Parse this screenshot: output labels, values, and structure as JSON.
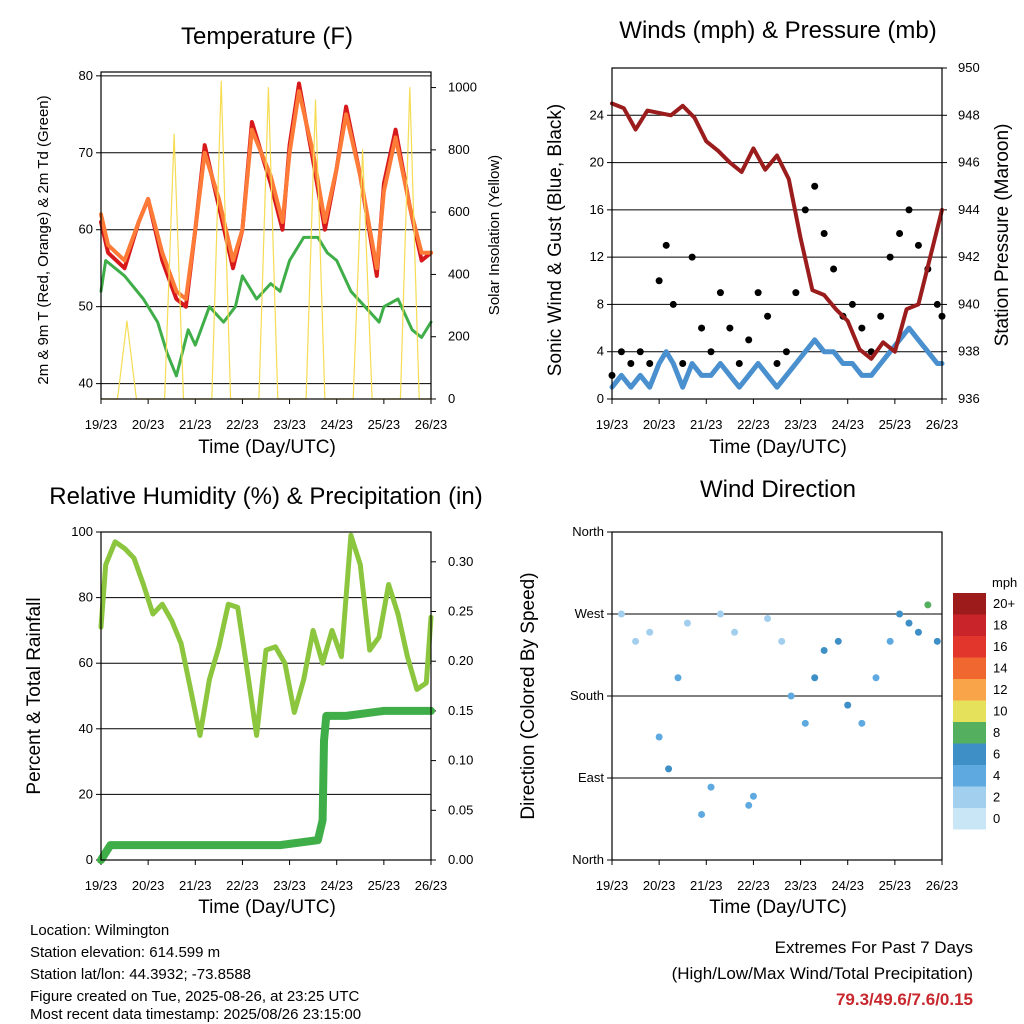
{
  "x_ticks": [
    "19/23",
    "20/23",
    "21/23",
    "22/23",
    "23/23",
    "24/23",
    "25/23",
    "26/23"
  ],
  "xlabel": "Time (Day/UTC)",
  "colors": {
    "temp_2m": "#d7191c",
    "temp_9m": "#fd7a37",
    "dewpoint": "#3fae49",
    "solar": "#f5dc52",
    "gust": "#000000",
    "wind": "#4a90cf",
    "pressure": "#9b1c1c",
    "rh": "#8cc63f",
    "precip": "#3fae49"
  },
  "chart_data": [
    {
      "id": "temperature",
      "type": "line",
      "title": "Temperature (F)",
      "xlabel": "Time (Day/UTC)",
      "ylabel": "2m & 9m T (Red, Orange) & 2m Td (Green)",
      "y2label": "Solar Insolation (Yellow)",
      "ylim": [
        38,
        80.5
      ],
      "y_ticks": [
        40,
        50,
        60,
        70,
        80
      ],
      "y2lim": [
        0,
        1050
      ],
      "y2_ticks": [
        0,
        200,
        400,
        600,
        800,
        1000
      ],
      "grid": true,
      "series": [
        {
          "key": "temp_2m",
          "axis": "left",
          "x": [
            0,
            0.15,
            0.5,
            0.8,
            1,
            1.3,
            1.6,
            1.8,
            2,
            2.2,
            2.5,
            2.8,
            3,
            3.2,
            3.6,
            3.85,
            4,
            4.2,
            4.5,
            4.75,
            5,
            5.2,
            5.5,
            5.85,
            6,
            6.25,
            6.55,
            6.8,
            7
          ],
          "values": [
            61,
            57,
            55,
            61,
            64,
            56,
            51,
            50,
            60,
            71,
            63,
            55,
            60,
            74,
            66,
            60,
            71,
            79,
            69,
            60,
            68,
            76,
            67,
            54,
            66,
            73,
            63,
            56,
            57
          ]
        },
        {
          "key": "temp_9m",
          "axis": "left",
          "x": [
            0,
            0.15,
            0.5,
            0.8,
            1,
            1.3,
            1.6,
            1.8,
            2,
            2.2,
            2.5,
            2.8,
            3,
            3.2,
            3.6,
            3.85,
            4,
            4.2,
            4.5,
            4.75,
            5,
            5.2,
            5.5,
            5.85,
            6,
            6.25,
            6.55,
            6.8,
            7
          ],
          "values": [
            62,
            58,
            56,
            61,
            64,
            57,
            52,
            51,
            60,
            70,
            64,
            56,
            60,
            73,
            67,
            61,
            70,
            78,
            70,
            61,
            68,
            75,
            67,
            55,
            65,
            72,
            63,
            57,
            57
          ]
        },
        {
          "key": "dewpoint",
          "axis": "left",
          "x": [
            0,
            0.1,
            0.5,
            0.9,
            1.2,
            1.4,
            1.6,
            1.85,
            2,
            2.3,
            2.6,
            2.85,
            3,
            3.3,
            3.6,
            3.8,
            4,
            4.3,
            4.6,
            4.8,
            5,
            5.3,
            5.6,
            5.9,
            6,
            6.3,
            6.6,
            6.8,
            7
          ],
          "values": [
            52,
            56,
            54,
            51,
            48,
            44,
            41,
            47,
            45,
            50,
            48,
            50,
            54,
            51,
            53,
            52,
            56,
            59,
            59,
            57,
            56,
            52,
            50,
            48,
            50,
            51,
            47,
            46,
            48
          ]
        },
        {
          "key": "solar",
          "axis": "right",
          "x": [
            0,
            0.35,
            0.55,
            0.75,
            1.05,
            1.35,
            1.55,
            1.75,
            2.05,
            2.35,
            2.55,
            2.75,
            3.05,
            3.35,
            3.55,
            3.75,
            4.05,
            4.35,
            4.55,
            4.75,
            5.05,
            5.35,
            5.55,
            5.75,
            6.05,
            6.35,
            6.55,
            6.75,
            7
          ],
          "values": [
            0,
            0,
            250,
            0,
            0,
            0,
            850,
            0,
            0,
            0,
            1020,
            0,
            0,
            0,
            1000,
            0,
            0,
            0,
            960,
            0,
            0,
            0,
            800,
            0,
            0,
            0,
            1000,
            0,
            0
          ]
        }
      ]
    },
    {
      "id": "winds",
      "type": "scatter",
      "title": "Winds (mph) & Pressure (mb)",
      "xlabel": "Time (Day/UTC)",
      "ylabel": "Sonic Wind & Gust (Blue, Black)",
      "y2label": "Station Pressure (Maroon)",
      "ylim": [
        0,
        28
      ],
      "y_ticks": [
        0,
        4,
        8,
        12,
        16,
        20,
        24
      ],
      "y2lim": [
        936,
        950
      ],
      "y2_ticks": [
        936,
        938,
        940,
        942,
        944,
        946,
        948,
        950
      ],
      "grid": true,
      "series": [
        {
          "key": "gust",
          "axis": "left",
          "x": [
            0,
            0.2,
            0.4,
            0.6,
            0.8,
            1,
            1.15,
            1.3,
            1.5,
            1.7,
            1.9,
            2.1,
            2.3,
            2.5,
            2.7,
            2.9,
            3.1,
            3.3,
            3.5,
            3.7,
            3.9,
            4.1,
            4.3,
            4.5,
            4.7,
            4.9,
            5.1,
            5.3,
            5.5,
            5.7,
            5.9,
            6.1,
            6.3,
            6.5,
            6.7,
            6.9,
            7
          ],
          "values": [
            2,
            4,
            3,
            4,
            3,
            10,
            13,
            8,
            3,
            12,
            6,
            4,
            9,
            6,
            3,
            5,
            9,
            7,
            3,
            4,
            9,
            16,
            18,
            14,
            11,
            7,
            8,
            6,
            4,
            7,
            12,
            14,
            16,
            13,
            11,
            8,
            7
          ]
        },
        {
          "key": "wind",
          "axis": "left",
          "x": [
            0,
            0.2,
            0.4,
            0.6,
            0.8,
            1,
            1.15,
            1.3,
            1.5,
            1.7,
            1.9,
            2.1,
            2.3,
            2.5,
            2.7,
            2.9,
            3.1,
            3.3,
            3.5,
            3.7,
            3.9,
            4.1,
            4.3,
            4.5,
            4.7,
            4.9,
            5.1,
            5.3,
            5.5,
            5.7,
            5.9,
            6.1,
            6.3,
            6.5,
            6.7,
            6.9,
            7
          ],
          "values": [
            1,
            2,
            1,
            2,
            1,
            3,
            4,
            3,
            1,
            3,
            2,
            2,
            3,
            2,
            1,
            2,
            3,
            2,
            1,
            2,
            3,
            4,
            5,
            4,
            4,
            3,
            3,
            2,
            2,
            3,
            4,
            5,
            6,
            5,
            4,
            3,
            3
          ]
        },
        {
          "key": "pressure",
          "axis": "right",
          "x": [
            0,
            0.25,
            0.5,
            0.75,
            1,
            1.25,
            1.5,
            1.75,
            2,
            2.25,
            2.5,
            2.75,
            3,
            3.25,
            3.5,
            3.75,
            4,
            4.25,
            4.5,
            4.75,
            5,
            5.25,
            5.5,
            5.75,
            6,
            6.25,
            6.5,
            6.75,
            7
          ],
          "values": [
            948.5,
            948.3,
            947.4,
            948.2,
            948.1,
            948.0,
            948.4,
            947.9,
            946.9,
            946.5,
            946.0,
            945.6,
            946.6,
            945.7,
            946.3,
            945.3,
            942.8,
            940.6,
            940.4,
            939.8,
            939.3,
            938.1,
            937.7,
            938.4,
            938.0,
            939.8,
            940.0,
            942.0,
            944.0
          ]
        }
      ]
    },
    {
      "id": "humidity",
      "type": "line",
      "title": "Relative Humidity (%) & Precipitation (in)",
      "xlabel": "Time (Day/UTC)",
      "ylabel": "Percent & Total Rainfall",
      "ylim": [
        0,
        100
      ],
      "y_ticks": [
        0,
        20,
        40,
        60,
        80,
        100
      ],
      "y2lim": [
        0,
        0.33
      ],
      "y2_ticks": [
        "0.00",
        "0.05",
        "0.10",
        "0.15",
        "0.20",
        "0.25",
        "0.30"
      ],
      "grid": true,
      "series": [
        {
          "key": "rh",
          "axis": "left",
          "x": [
            0,
            0.1,
            0.3,
            0.5,
            0.7,
            0.9,
            1.1,
            1.3,
            1.5,
            1.7,
            1.9,
            2.1,
            2.3,
            2.5,
            2.7,
            2.9,
            3.1,
            3.3,
            3.5,
            3.7,
            3.9,
            4.1,
            4.3,
            4.5,
            4.7,
            4.9,
            5.1,
            5.3,
            5.5,
            5.7,
            5.9,
            6.1,
            6.3,
            6.5,
            6.7,
            6.9,
            7
          ],
          "values": [
            71,
            90,
            97,
            95,
            92,
            84,
            75,
            78,
            73,
            66,
            52,
            38,
            55,
            65,
            78,
            77,
            58,
            38,
            64,
            65,
            60,
            45,
            55,
            70,
            60,
            70,
            62,
            99,
            90,
            64,
            68,
            84,
            75,
            62,
            52,
            54,
            74
          ]
        },
        {
          "key": "precip",
          "axis": "right",
          "x": [
            0,
            0.2,
            0.4,
            3.8,
            4.6,
            4.7,
            4.73,
            4.78,
            5.2,
            6,
            6.5,
            7
          ],
          "values": [
            0,
            0.015,
            0.015,
            0.015,
            0.02,
            0.04,
            0.12,
            0.145,
            0.145,
            0.15,
            0.15,
            0.15
          ]
        }
      ]
    },
    {
      "id": "direction",
      "type": "scatter",
      "title": "Wind Direction",
      "xlabel": "Time (Day/UTC)",
      "ylabel": "Direction (Colored By Speed)",
      "y_ticks": [
        "North",
        "East",
        "South",
        "West",
        "North"
      ],
      "ylim": [
        0,
        360
      ],
      "grid": true,
      "legend": {
        "title": "mph",
        "labels": [
          "20+",
          "18",
          "16",
          "14",
          "12",
          "10",
          "8",
          "6",
          "4",
          "2",
          "0"
        ],
        "colors": [
          "#9e1b1b",
          "#c9242a",
          "#e2352b",
          "#f0682f",
          "#f9a448",
          "#e5e15a",
          "#54b05e",
          "#3e8fc6",
          "#5eaae0",
          "#a3cfef",
          "#c9e6f6"
        ]
      },
      "series": [
        {
          "key": "direction",
          "axis": "left",
          "x": [
            0.2,
            0.5,
            0.8,
            1.0,
            1.2,
            1.4,
            1.6,
            1.9,
            2.1,
            2.3,
            2.6,
            2.9,
            3.0,
            3.3,
            3.6,
            3.8,
            4.1,
            4.3,
            4.5,
            4.8,
            5.0,
            5.3,
            5.6,
            5.9,
            6.1,
            6.3,
            6.5,
            6.7,
            6.9
          ],
          "values": [
            270,
            240,
            250,
            135,
            100,
            200,
            260,
            50,
            80,
            270,
            250,
            60,
            70,
            265,
            240,
            180,
            150,
            200,
            230,
            240,
            170,
            150,
            200,
            240,
            270,
            260,
            250,
            280,
            240
          ],
          "speeds": [
            1,
            1,
            2,
            4,
            5,
            3,
            2,
            4,
            4,
            2,
            2,
            4,
            3,
            2,
            2,
            4,
            4,
            5,
            6,
            5,
            5,
            4,
            3,
            3,
            5,
            6,
            6,
            7,
            5
          ]
        }
      ]
    }
  ],
  "info": {
    "location": "Location: Wilmington",
    "elevation": "Station elevation: 614.599 m",
    "latlon": "Station lat/lon: 44.3932; -73.8588",
    "created": "Figure created on Tue, 2025-08-26, at 23:25 UTC",
    "recent": "Most recent data timestamp: 2025/08/26 23:15:00"
  },
  "extremes": {
    "title": "Extremes For Past 7 Days",
    "subtitle": "(High/Low/Max Wind/Total Precipitation)",
    "values": "79.3/49.6/7.6/0.15"
  }
}
